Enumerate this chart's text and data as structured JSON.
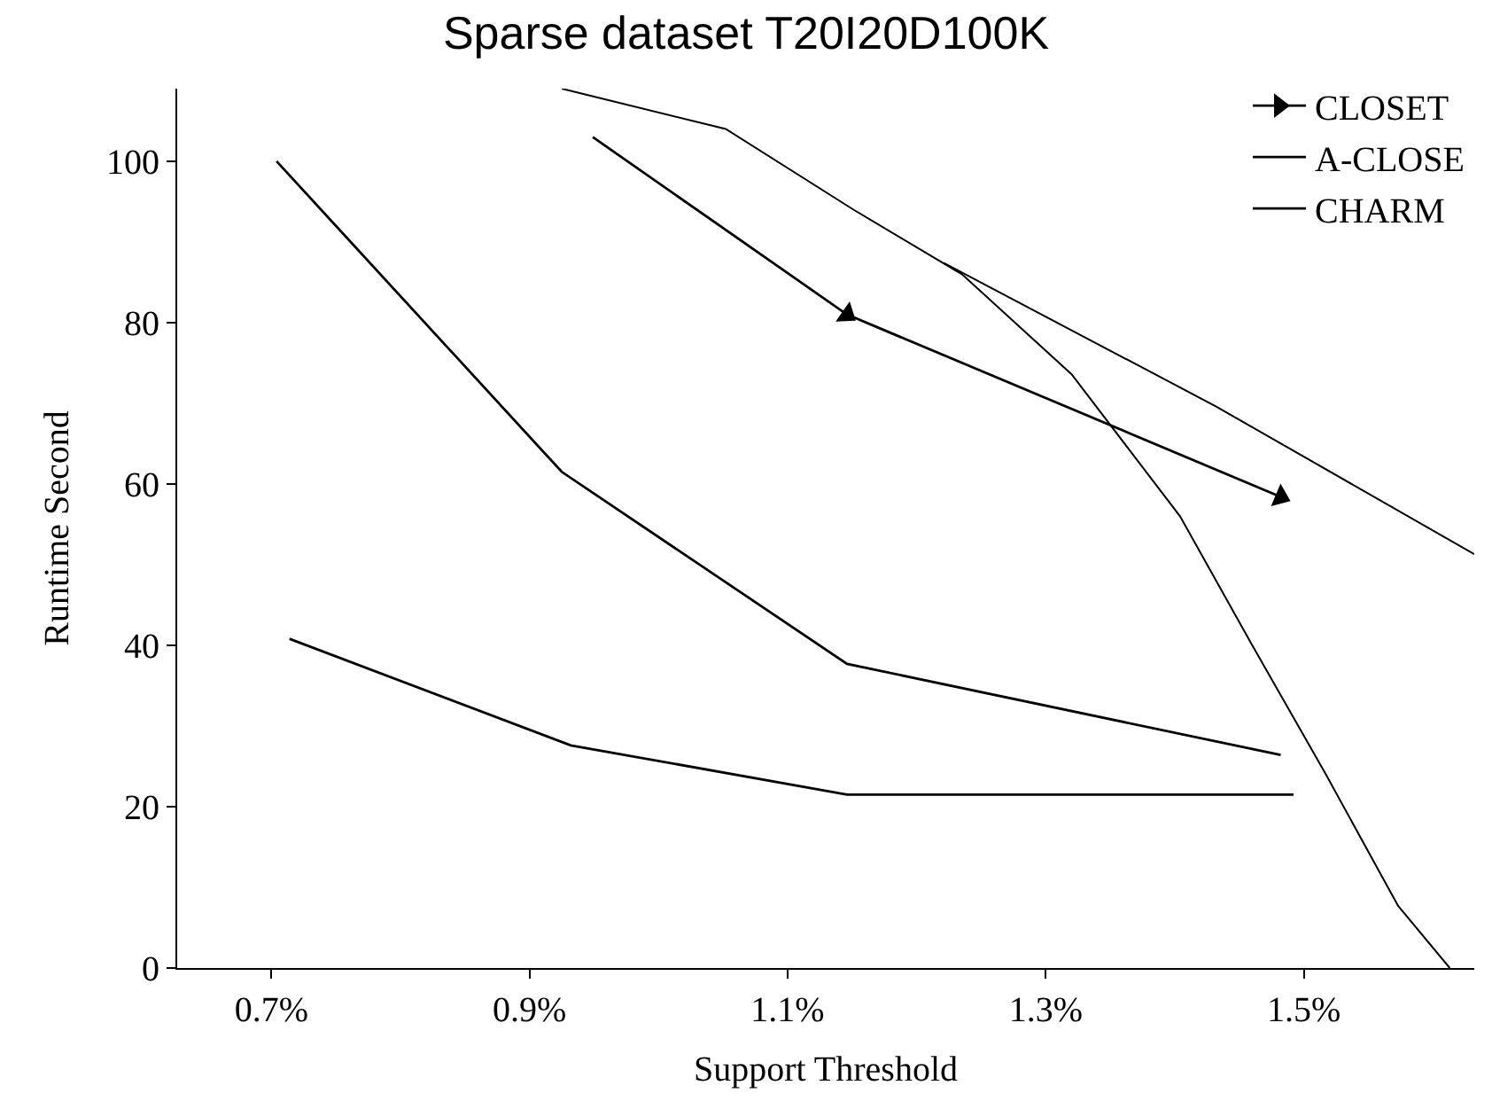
{
  "chart_data": {
    "type": "line",
    "title": "Sparse dataset T20I20D100K",
    "xlabel": "Support Threshold",
    "ylabel": "Runtime Second",
    "xlim": [
      0.627,
      1.632
    ],
    "xticks": [
      {
        "value": 0.7,
        "label": "0.7%"
      },
      {
        "value": 0.9,
        "label": "0.9%"
      },
      {
        "value": 1.1,
        "label": "1.1%"
      },
      {
        "value": 1.3,
        "label": "1.3%"
      },
      {
        "value": 1.5,
        "label": "1.5%"
      }
    ],
    "ylim": [
      0,
      109
    ],
    "yticks": [
      0,
      20,
      40,
      60,
      80,
      100
    ],
    "legend": "top right",
    "series": [
      {
        "name": "CLOSET",
        "color": "#000000",
        "marker": "triangle",
        "x": [
          0.949,
          1.146,
          1.482
        ],
        "values": [
          103,
          81,
          58.4
        ]
      },
      {
        "name": "A-CLOSE",
        "color": "#000000",
        "x": [
          0.704,
          0.925,
          1.146,
          1.482
        ],
        "values": [
          100,
          61.5,
          37.7,
          26.4
        ]
      },
      {
        "name": "CHARM",
        "color": "#000000",
        "x": [
          0.714,
          0.932,
          1.146,
          1.492
        ],
        "values": [
          40.8,
          27.6,
          21.5,
          21.5
        ]
      },
      {
        "color": "#000000",
        "x": [
          0.925,
          1.052,
          1.151,
          1.235,
          1.32,
          1.404,
          1.46,
          1.517,
          1.573,
          1.613
        ],
        "values": [
          109,
          104,
          94,
          86,
          73.6,
          56,
          40,
          24,
          7.7,
          0
        ]
      },
      {
        "color": "#000000",
        "x": [
          1.221,
          1.432,
          1.632
        ],
        "values": [
          87.4,
          69.6,
          51.3
        ]
      }
    ]
  }
}
